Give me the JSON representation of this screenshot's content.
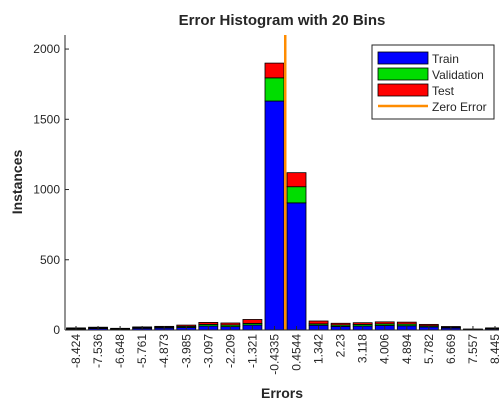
{
  "chart_data": {
    "type": "bar",
    "stacked": true,
    "title": "Error Histogram with 20 Bins",
    "xlabel": "Errors",
    "ylabel": "Instances",
    "ylim": [
      0,
      2100
    ],
    "yticks": [
      0,
      500,
      1000,
      1500,
      2000
    ],
    "categories": [
      "-8.424",
      "-7.536",
      "-6.648",
      "-5.761",
      "-4.873",
      "-3.985",
      "-3.097",
      "-2.209",
      "-1.321",
      "-0.4335",
      "0.4544",
      "1.342",
      "2.23",
      "3.118",
      "4.006",
      "4.894",
      "5.782",
      "6.669",
      "7.557",
      "8.445"
    ],
    "series": [
      {
        "name": "Train",
        "color": "#0000ff",
        "values": [
          6,
          10,
          6,
          12,
          14,
          18,
          28,
          24,
          35,
          1630,
          905,
          34,
          26,
          28,
          32,
          30,
          22,
          14,
          4,
          8
        ]
      },
      {
        "name": "Validation",
        "color": "#00dd00",
        "values": [
          4,
          5,
          2,
          5,
          6,
          8,
          12,
          12,
          12,
          165,
          115,
          10,
          10,
          12,
          12,
          12,
          8,
          5,
          1,
          3
        ]
      },
      {
        "name": "Test",
        "color": "#ff0000",
        "values": [
          5,
          5,
          4,
          5,
          6,
          9,
          14,
          14,
          28,
          105,
          100,
          20,
          12,
          12,
          14,
          14,
          10,
          6,
          2,
          4
        ]
      }
    ],
    "reference_line": {
      "name": "Zero Error",
      "x": 0,
      "color": "#ff8c00"
    },
    "legend_position": "top-right",
    "grid": false
  }
}
